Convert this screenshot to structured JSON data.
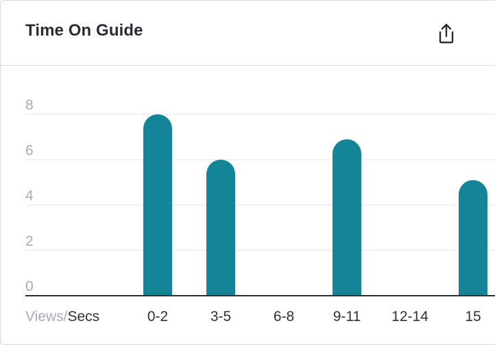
{
  "card": {
    "title": "Time On Guide",
    "share_icon": "share-upload-icon"
  },
  "colors": {
    "bar": "#138597",
    "grid": "#e4e5ec",
    "axis": "#2b2c33",
    "tick_text": "#a9abb6",
    "label_text": "#2f3037"
  },
  "chart_data": {
    "type": "bar",
    "title": "Time On Guide",
    "xlabel": "",
    "ylabel": "",
    "axis_caption": {
      "views": "Views",
      "separator": "/",
      "secs": "Secs"
    },
    "categories": [
      "0-2",
      "3-5",
      "6-8",
      "9-11",
      "12-14",
      "15"
    ],
    "values": [
      8,
      6,
      0,
      6.9,
      0,
      5.1
    ],
    "ylim": [
      0,
      8
    ],
    "yticks": [
      0,
      2,
      4,
      6,
      8
    ],
    "grid": true,
    "legend": "none"
  }
}
